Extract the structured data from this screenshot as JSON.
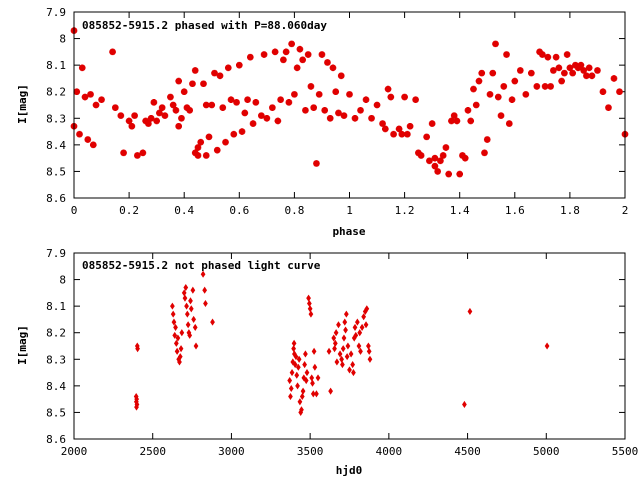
{
  "chart_data": [
    {
      "type": "scatter",
      "title": "085852-5915.2 phased with P=88.060day",
      "xlabel": "phase",
      "ylabel": "I[mag]",
      "xlim": [
        0,
        2
      ],
      "ylim": [
        8.6,
        7.9
      ],
      "y_inverted": true,
      "grid": false,
      "xticks": [
        0,
        0.2,
        0.4,
        0.6,
        0.8,
        1,
        1.2,
        1.4,
        1.6,
        1.8,
        2
      ],
      "xtick_labels": [
        "0",
        "0.2",
        "0.4",
        "0.6",
        "0.8",
        "1",
        "1.2",
        "1.4",
        "1.6",
        "1.8",
        "2"
      ],
      "yticks": [
        7.9,
        8.0,
        8.1,
        8.2,
        8.3,
        8.4,
        8.5,
        8.6
      ],
      "ytick_labels": [
        "7.9",
        "8",
        "8.1",
        "8.2",
        "8.3",
        "8.4",
        "8.5",
        "8.6"
      ],
      "marker": "star",
      "color": "#e00000",
      "points": [
        [
          0.0,
          7.97
        ],
        [
          0.0,
          8.33
        ],
        [
          0.01,
          8.2
        ],
        [
          0.02,
          8.36
        ],
        [
          0.03,
          8.11
        ],
        [
          0.04,
          8.22
        ],
        [
          0.05,
          8.38
        ],
        [
          0.06,
          8.21
        ],
        [
          0.07,
          8.4
        ],
        [
          0.08,
          8.25
        ],
        [
          0.1,
          8.23
        ],
        [
          0.14,
          8.05
        ],
        [
          0.15,
          8.26
        ],
        [
          0.17,
          8.29
        ],
        [
          0.18,
          8.43
        ],
        [
          0.2,
          8.31
        ],
        [
          0.21,
          8.33
        ],
        [
          0.22,
          8.29
        ],
        [
          0.23,
          8.44
        ],
        [
          0.25,
          8.43
        ],
        [
          0.26,
          8.31
        ],
        [
          0.27,
          8.32
        ],
        [
          0.28,
          8.3
        ],
        [
          0.29,
          8.24
        ],
        [
          0.3,
          8.31
        ],
        [
          0.31,
          8.28
        ],
        [
          0.32,
          8.26
        ],
        [
          0.33,
          8.29
        ],
        [
          0.35,
          8.22
        ],
        [
          0.36,
          8.25
        ],
        [
          0.37,
          8.27
        ],
        [
          0.38,
          8.33
        ],
        [
          0.39,
          8.3
        ],
        [
          0.38,
          8.16
        ],
        [
          0.4,
          8.2
        ],
        [
          0.41,
          8.26
        ],
        [
          0.42,
          8.27
        ],
        [
          0.43,
          8.17
        ],
        [
          0.44,
          8.12
        ],
        [
          0.45,
          8.41
        ],
        [
          0.44,
          8.43
        ],
        [
          0.45,
          8.44
        ],
        [
          0.46,
          8.39
        ],
        [
          0.47,
          8.17
        ],
        [
          0.48,
          8.44
        ],
        [
          0.48,
          8.25
        ],
        [
          0.49,
          8.37
        ],
        [
          0.5,
          8.25
        ],
        [
          0.51,
          8.13
        ],
        [
          0.52,
          8.42
        ],
        [
          0.53,
          8.14
        ],
        [
          0.54,
          8.26
        ],
        [
          0.55,
          8.39
        ],
        [
          0.56,
          8.11
        ],
        [
          0.57,
          8.23
        ],
        [
          0.58,
          8.36
        ],
        [
          0.59,
          8.24
        ],
        [
          0.6,
          8.1
        ],
        [
          0.61,
          8.35
        ],
        [
          0.62,
          8.28
        ],
        [
          0.63,
          8.23
        ],
        [
          0.64,
          8.07
        ],
        [
          0.65,
          8.32
        ],
        [
          0.66,
          8.24
        ],
        [
          0.68,
          8.29
        ],
        [
          0.69,
          8.06
        ],
        [
          0.7,
          8.3
        ],
        [
          0.72,
          8.26
        ],
        [
          0.73,
          8.05
        ],
        [
          0.74,
          8.31
        ],
        [
          0.75,
          8.23
        ],
        [
          0.76,
          8.08
        ],
        [
          0.77,
          8.05
        ],
        [
          0.78,
          8.24
        ],
        [
          0.79,
          8.02
        ],
        [
          0.8,
          8.21
        ],
        [
          0.81,
          8.11
        ],
        [
          0.82,
          8.04
        ],
        [
          0.83,
          8.08
        ],
        [
          0.84,
          8.27
        ],
        [
          0.85,
          8.06
        ],
        [
          0.86,
          8.18
        ],
        [
          0.87,
          8.26
        ],
        [
          0.88,
          8.47
        ],
        [
          0.89,
          8.21
        ],
        [
          0.9,
          8.06
        ],
        [
          0.91,
          8.27
        ],
        [
          0.92,
          8.09
        ],
        [
          0.93,
          8.3
        ],
        [
          0.94,
          8.11
        ],
        [
          0.95,
          8.2
        ],
        [
          0.96,
          8.28
        ],
        [
          0.97,
          8.14
        ],
        [
          0.98,
          8.29
        ],
        [
          1.0,
          8.21
        ],
        [
          1.02,
          8.3
        ],
        [
          1.04,
          8.27
        ],
        [
          1.06,
          8.23
        ],
        [
          1.08,
          8.3
        ],
        [
          1.1,
          8.25
        ],
        [
          1.12,
          8.32
        ],
        [
          1.13,
          8.34
        ],
        [
          1.14,
          8.19
        ],
        [
          1.15,
          8.22
        ],
        [
          1.16,
          8.36
        ],
        [
          1.18,
          8.34
        ],
        [
          1.19,
          8.36
        ],
        [
          1.2,
          8.22
        ],
        [
          1.21,
          8.36
        ],
        [
          1.22,
          8.33
        ],
        [
          1.24,
          8.23
        ],
        [
          1.25,
          8.43
        ],
        [
          1.26,
          8.44
        ],
        [
          1.28,
          8.37
        ],
        [
          1.29,
          8.46
        ],
        [
          1.3,
          8.32
        ],
        [
          1.31,
          8.45
        ],
        [
          1.31,
          8.48
        ],
        [
          1.32,
          8.5
        ],
        [
          1.33,
          8.46
        ],
        [
          1.34,
          8.44
        ],
        [
          1.35,
          8.41
        ],
        [
          1.36,
          8.51
        ],
        [
          1.37,
          8.31
        ],
        [
          1.38,
          8.29
        ],
        [
          1.39,
          8.31
        ],
        [
          1.4,
          8.51
        ],
        [
          1.41,
          8.44
        ],
        [
          1.42,
          8.45
        ],
        [
          1.43,
          8.27
        ],
        [
          1.44,
          8.31
        ],
        [
          1.45,
          8.19
        ],
        [
          1.46,
          8.25
        ],
        [
          1.47,
          8.16
        ],
        [
          1.48,
          8.13
        ],
        [
          1.49,
          8.43
        ],
        [
          1.5,
          8.38
        ],
        [
          1.51,
          8.21
        ],
        [
          1.52,
          8.13
        ],
        [
          1.53,
          8.02
        ],
        [
          1.54,
          8.22
        ],
        [
          1.55,
          8.29
        ],
        [
          1.56,
          8.18
        ],
        [
          1.57,
          8.06
        ],
        [
          1.58,
          8.32
        ],
        [
          1.59,
          8.23
        ],
        [
          1.6,
          8.16
        ],
        [
          1.62,
          8.12
        ],
        [
          1.64,
          8.21
        ],
        [
          1.66,
          8.13
        ],
        [
          1.68,
          8.18
        ],
        [
          1.69,
          8.05
        ],
        [
          1.7,
          8.06
        ],
        [
          1.71,
          8.18
        ],
        [
          1.72,
          8.07
        ],
        [
          1.73,
          8.18
        ],
        [
          1.74,
          8.12
        ],
        [
          1.75,
          8.07
        ],
        [
          1.76,
          8.11
        ],
        [
          1.77,
          8.16
        ],
        [
          1.78,
          8.13
        ],
        [
          1.79,
          8.06
        ],
        [
          1.8,
          8.11
        ],
        [
          1.81,
          8.13
        ],
        [
          1.82,
          8.1
        ],
        [
          1.83,
          8.11
        ],
        [
          1.84,
          8.1
        ],
        [
          1.85,
          8.12
        ],
        [
          1.86,
          8.14
        ],
        [
          1.87,
          8.11
        ],
        [
          1.88,
          8.14
        ],
        [
          1.9,
          8.12
        ],
        [
          1.92,
          8.2
        ],
        [
          1.94,
          8.26
        ],
        [
          1.96,
          8.15
        ],
        [
          1.98,
          8.2
        ],
        [
          2.0,
          8.36
        ]
      ]
    },
    {
      "type": "scatter",
      "title": "085852-5915.2 not phased light curve",
      "xlabel": "hjd0",
      "ylabel": "I[mag]",
      "xlim": [
        2000,
        5500
      ],
      "ylim": [
        8.6,
        7.9
      ],
      "y_inverted": true,
      "grid": false,
      "xticks": [
        2000,
        2500,
        3000,
        3500,
        4000,
        4500,
        5000,
        5500
      ],
      "xtick_labels": [
        "2000",
        "2500",
        "3000",
        "3500",
        "4000",
        "4500",
        "5000",
        "5500"
      ],
      "yticks": [
        7.9,
        8.0,
        8.1,
        8.2,
        8.3,
        8.4,
        8.5,
        8.6
      ],
      "ytick_labels": [
        "7.9",
        "8",
        "8.1",
        "8.2",
        "8.3",
        "8.4",
        "8.5",
        "8.6"
      ],
      "marker": "diamond",
      "color": "#e00000",
      "points": [
        [
          2395,
          8.44
        ],
        [
          2396,
          8.46
        ],
        [
          2397,
          8.48
        ],
        [
          2398,
          8.45
        ],
        [
          2400,
          8.47
        ],
        [
          2402,
          8.25
        ],
        [
          2404,
          8.26
        ],
        [
          2625,
          8.1
        ],
        [
          2630,
          8.13
        ],
        [
          2635,
          8.16
        ],
        [
          2640,
          8.21
        ],
        [
          2645,
          8.18
        ],
        [
          2650,
          8.24
        ],
        [
          2655,
          8.27
        ],
        [
          2660,
          8.22
        ],
        [
          2665,
          8.3
        ],
        [
          2670,
          8.31
        ],
        [
          2675,
          8.29
        ],
        [
          2680,
          8.26
        ],
        [
          2685,
          8.2
        ],
        [
          2700,
          8.05
        ],
        [
          2705,
          8.07
        ],
        [
          2710,
          8.03
        ],
        [
          2715,
          8.1
        ],
        [
          2720,
          8.13
        ],
        [
          2725,
          8.17
        ],
        [
          2730,
          8.2
        ],
        [
          2735,
          8.21
        ],
        [
          2740,
          8.08
        ],
        [
          2745,
          8.11
        ],
        [
          2755,
          8.04
        ],
        [
          2760,
          8.15
        ],
        [
          2770,
          8.18
        ],
        [
          2775,
          8.25
        ],
        [
          2820,
          7.98
        ],
        [
          2830,
          8.04
        ],
        [
          2835,
          8.09
        ],
        [
          2880,
          8.16
        ],
        [
          3370,
          8.38
        ],
        [
          3375,
          8.44
        ],
        [
          3380,
          8.41
        ],
        [
          3385,
          8.35
        ],
        [
          3390,
          8.31
        ],
        [
          3395,
          8.26
        ],
        [
          3398,
          8.24
        ],
        [
          3400,
          8.28
        ],
        [
          3405,
          8.32
        ],
        [
          3410,
          8.29
        ],
        [
          3415,
          8.36
        ],
        [
          3420,
          8.4
        ],
        [
          3425,
          8.33
        ],
        [
          3430,
          8.3
        ],
        [
          3435,
          8.46
        ],
        [
          3440,
          8.5
        ],
        [
          3445,
          8.49
        ],
        [
          3450,
          8.44
        ],
        [
          3455,
          8.42
        ],
        [
          3460,
          8.37
        ],
        [
          3465,
          8.32
        ],
        [
          3470,
          8.28
        ],
        [
          3475,
          8.38
        ],
        [
          3480,
          8.35
        ],
        [
          3490,
          8.07
        ],
        [
          3495,
          8.09
        ],
        [
          3500,
          8.11
        ],
        [
          3505,
          8.13
        ],
        [
          3510,
          8.37
        ],
        [
          3515,
          8.39
        ],
        [
          3520,
          8.43
        ],
        [
          3525,
          8.27
        ],
        [
          3530,
          8.33
        ],
        [
          3540,
          8.43
        ],
        [
          3550,
          8.37
        ],
        [
          3620,
          8.27
        ],
        [
          3630,
          8.42
        ],
        [
          3650,
          8.22
        ],
        [
          3655,
          8.26
        ],
        [
          3660,
          8.24
        ],
        [
          3665,
          8.2
        ],
        [
          3670,
          8.31
        ],
        [
          3680,
          8.17
        ],
        [
          3690,
          8.28
        ],
        [
          3700,
          8.3
        ],
        [
          3705,
          8.32
        ],
        [
          3710,
          8.26
        ],
        [
          3715,
          8.22
        ],
        [
          3720,
          8.16
        ],
        [
          3725,
          8.19
        ],
        [
          3730,
          8.13
        ],
        [
          3735,
          8.29
        ],
        [
          3740,
          8.25
        ],
        [
          3750,
          8.34
        ],
        [
          3760,
          8.28
        ],
        [
          3770,
          8.32
        ],
        [
          3775,
          8.35
        ],
        [
          3780,
          8.22
        ],
        [
          3785,
          8.18
        ],
        [
          3790,
          8.21
        ],
        [
          3800,
          8.16
        ],
        [
          3810,
          8.25
        ],
        [
          3815,
          8.2
        ],
        [
          3820,
          8.27
        ],
        [
          3830,
          8.18
        ],
        [
          3840,
          8.14
        ],
        [
          3850,
          8.12
        ],
        [
          3855,
          8.17
        ],
        [
          3860,
          8.11
        ],
        [
          3870,
          8.25
        ],
        [
          3875,
          8.27
        ],
        [
          3880,
          8.3
        ],
        [
          4480,
          8.47
        ],
        [
          4515,
          8.12
        ],
        [
          5005,
          8.25
        ]
      ]
    }
  ]
}
